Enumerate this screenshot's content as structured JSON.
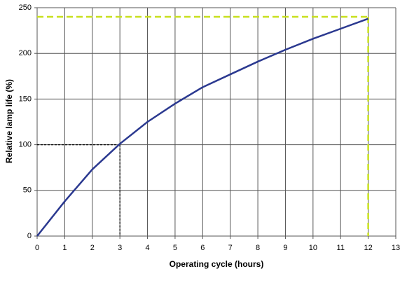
{
  "chart_data": {
    "type": "line",
    "xlabel": "Operating cycle (hours)",
    "ylabel": "Relative lamp life (%)",
    "x": [
      0,
      1,
      2,
      3,
      4,
      5,
      6,
      7,
      8,
      9,
      10,
      11,
      12
    ],
    "series": [
      {
        "color": "#2b3990",
        "values": [
          0,
          38,
          73,
          101,
          125,
          145,
          163,
          177,
          191,
          204,
          216,
          227,
          238
        ]
      }
    ],
    "xlim": [
      0,
      13
    ],
    "ylim": [
      0,
      250
    ],
    "xticks": [
      0,
      1,
      2,
      3,
      4,
      5,
      6,
      7,
      8,
      9,
      10,
      11,
      12,
      13
    ],
    "yticks": [
      0,
      50,
      100,
      150,
      200,
      250
    ],
    "grid": true,
    "reference_lines": [
      {
        "x": 3,
        "y": 100,
        "color": "#000000"
      },
      {
        "x": 12,
        "y": 240,
        "color": "#c8e01e"
      }
    ]
  }
}
